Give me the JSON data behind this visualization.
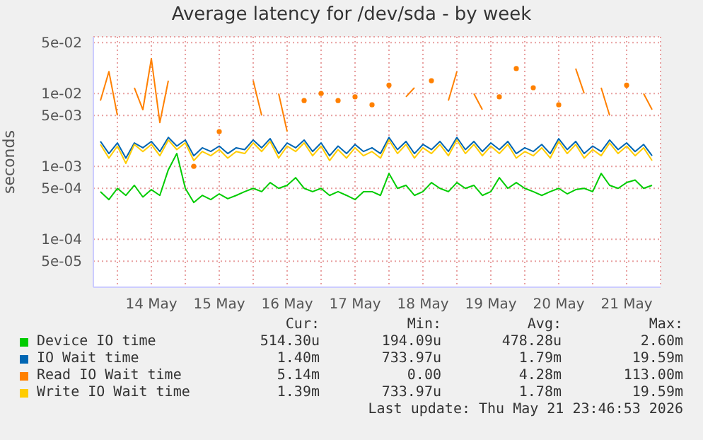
{
  "chart_data": {
    "type": "line",
    "title": "Average latency for /dev/sda - by week",
    "ylabel": "seconds",
    "log": "y",
    "grid": true,
    "legend": "bottom",
    "x": [
      "2026-05-13T18:00",
      "2026-05-13T21:00",
      "2026-05-14T00:00",
      "2026-05-14T03:00",
      "2026-05-14T06:00",
      "2026-05-14T09:00",
      "2026-05-14T12:00",
      "2026-05-14T15:00",
      "2026-05-14T18:00",
      "2026-05-14T21:00",
      "2026-05-15T00:00",
      "2026-05-15T03:00",
      "2026-05-15T06:00",
      "2026-05-15T09:00",
      "2026-05-15T12:00",
      "2026-05-15T15:00",
      "2026-05-15T18:00",
      "2026-05-15T21:00",
      "2026-05-16T00:00",
      "2026-05-16T03:00",
      "2026-05-16T06:00",
      "2026-05-16T09:00",
      "2026-05-16T12:00",
      "2026-05-16T15:00",
      "2026-05-16T18:00",
      "2026-05-16T21:00",
      "2026-05-17T00:00",
      "2026-05-17T03:00",
      "2026-05-17T06:00",
      "2026-05-17T09:00",
      "2026-05-17T12:00",
      "2026-05-17T15:00",
      "2026-05-17T18:00",
      "2026-05-17T21:00",
      "2026-05-18T00:00",
      "2026-05-18T03:00",
      "2026-05-18T06:00",
      "2026-05-18T09:00",
      "2026-05-18T12:00",
      "2026-05-18T15:00",
      "2026-05-18T18:00",
      "2026-05-18T21:00",
      "2026-05-19T00:00",
      "2026-05-19T03:00",
      "2026-05-19T06:00",
      "2026-05-19T09:00",
      "2026-05-19T12:00",
      "2026-05-19T15:00",
      "2026-05-19T18:00",
      "2026-05-19T21:00",
      "2026-05-20T00:00",
      "2026-05-20T03:00",
      "2026-05-20T06:00",
      "2026-05-20T09:00",
      "2026-05-20T12:00",
      "2026-05-20T15:00",
      "2026-05-20T18:00",
      "2026-05-20T21:00",
      "2026-05-21T00:00",
      "2026-05-21T03:00",
      "2026-05-21T06:00",
      "2026-05-21T09:00",
      "2026-05-21T12:00",
      "2026-05-21T15:00",
      "2026-05-21T18:00",
      "2026-05-21T21:00"
    ],
    "xlim": [
      "2026-05-13T15:30",
      "2026-05-22T00:00"
    ],
    "xticks": [
      {
        "value": "2026-05-14T00:00",
        "label": null
      },
      {
        "value": "2026-05-14T12:00",
        "label": "14 May"
      },
      {
        "value": "2026-05-15T00:00",
        "label": null
      },
      {
        "value": "2026-05-15T12:00",
        "label": "15 May"
      },
      {
        "value": "2026-05-16T00:00",
        "label": null
      },
      {
        "value": "2026-05-16T12:00",
        "label": "16 May"
      },
      {
        "value": "2026-05-17T00:00",
        "label": null
      },
      {
        "value": "2026-05-17T12:00",
        "label": "17 May"
      },
      {
        "value": "2026-05-18T00:00",
        "label": null
      },
      {
        "value": "2026-05-18T12:00",
        "label": "18 May"
      },
      {
        "value": "2026-05-19T00:00",
        "label": null
      },
      {
        "value": "2026-05-19T12:00",
        "label": "19 May"
      },
      {
        "value": "2026-05-20T00:00",
        "label": null
      },
      {
        "value": "2026-05-20T12:00",
        "label": "20 May"
      },
      {
        "value": "2026-05-21T00:00",
        "label": null
      },
      {
        "value": "2026-05-21T12:00",
        "label": "21 May"
      }
    ],
    "ylim": [
      2.2e-05,
      0.06
    ],
    "yticks": [
      {
        "value": 5e-05,
        "label": "5e-05"
      },
      {
        "value": 0.0001,
        "label": "1e-04"
      },
      {
        "value": 0.0005,
        "label": "5e-04"
      },
      {
        "value": 0.001,
        "label": "1e-03"
      },
      {
        "value": 0.005,
        "label": "5e-03"
      },
      {
        "value": 0.01,
        "label": "1e-02"
      },
      {
        "value": 0.05,
        "label": "5e-02"
      }
    ],
    "series": [
      {
        "name": "Device IO time",
        "color": "#00cc00",
        "values": [
          0.00045,
          0.00035,
          0.0005,
          0.0004,
          0.00055,
          0.00038,
          0.00048,
          0.0004,
          0.0009,
          0.0015,
          0.0005,
          0.00032,
          0.0004,
          0.00035,
          0.00042,
          0.00036,
          0.0004,
          0.00045,
          0.0005,
          0.00045,
          0.0006,
          0.0005,
          0.00055,
          0.0007,
          0.0005,
          0.00045,
          0.0005,
          0.0004,
          0.00045,
          0.0004,
          0.00035,
          0.00045,
          0.00045,
          0.0004,
          0.0008,
          0.0005,
          0.00055,
          0.0004,
          0.00045,
          0.0006,
          0.0005,
          0.00045,
          0.0006,
          0.0005,
          0.00055,
          0.0004,
          0.00045,
          0.0007,
          0.0005,
          0.0006,
          0.0005,
          0.00045,
          0.0004,
          0.00045,
          0.0005,
          0.00042,
          0.00048,
          0.0005,
          0.00045,
          0.0008,
          0.00055,
          0.0005,
          0.0006,
          0.00065,
          0.0005,
          0.00055
        ]
      },
      {
        "name": "IO Wait time",
        "color": "#0066b3",
        "values": [
          0.0022,
          0.0015,
          0.0021,
          0.0013,
          0.0021,
          0.0018,
          0.0022,
          0.0016,
          0.0025,
          0.0019,
          0.0023,
          0.0014,
          0.0018,
          0.0016,
          0.0019,
          0.0015,
          0.0018,
          0.0017,
          0.0023,
          0.0018,
          0.0024,
          0.0015,
          0.0021,
          0.0018,
          0.0023,
          0.0016,
          0.0021,
          0.0014,
          0.0019,
          0.0015,
          0.002,
          0.0016,
          0.0018,
          0.0015,
          0.0025,
          0.0017,
          0.0022,
          0.0015,
          0.002,
          0.0017,
          0.0022,
          0.0016,
          0.0025,
          0.0017,
          0.0022,
          0.0016,
          0.0021,
          0.0017,
          0.0022,
          0.0015,
          0.0018,
          0.0016,
          0.002,
          0.0015,
          0.0024,
          0.0017,
          0.0022,
          0.0015,
          0.0019,
          0.0016,
          0.0023,
          0.0017,
          0.0021,
          0.0016,
          0.002,
          0.0014
        ]
      },
      {
        "name": "Read IO Wait time",
        "color": "#ff8000",
        "values": [
          0.008,
          0.02,
          0.005,
          null,
          0.012,
          0.006,
          0.03,
          0.004,
          0.015,
          null,
          null,
          0.001,
          null,
          null,
          0.003,
          null,
          null,
          null,
          0.015,
          0.005,
          null,
          0.01,
          0.003,
          null,
          0.008,
          null,
          0.01,
          null,
          0.008,
          null,
          0.009,
          null,
          0.007,
          null,
          0.013,
          null,
          0.009,
          0.012,
          null,
          0.015,
          null,
          0.008,
          0.02,
          null,
          0.01,
          0.006,
          null,
          0.009,
          null,
          0.022,
          null,
          0.012,
          null,
          null,
          0.007,
          null,
          0.022,
          0.01,
          null,
          0.012,
          0.005,
          null,
          0.013,
          null,
          0.01,
          0.006
        ]
      },
      {
        "name": "Write IO Wait time",
        "color": "#ffcc00",
        "values": [
          0.002,
          0.0013,
          0.0019,
          0.0011,
          0.002,
          0.0016,
          0.002,
          0.0014,
          0.0023,
          0.0017,
          0.0021,
          0.0012,
          0.0016,
          0.0014,
          0.0017,
          0.0013,
          0.0016,
          0.0015,
          0.0021,
          0.0016,
          0.0022,
          0.0013,
          0.0019,
          0.0016,
          0.0021,
          0.0014,
          0.0019,
          0.0012,
          0.0017,
          0.0013,
          0.0018,
          0.0014,
          0.0016,
          0.0013,
          0.0023,
          0.0015,
          0.002,
          0.0013,
          0.0018,
          0.0015,
          0.002,
          0.0014,
          0.0023,
          0.0015,
          0.002,
          0.0014,
          0.0019,
          0.0015,
          0.002,
          0.0013,
          0.0016,
          0.0014,
          0.0018,
          0.0013,
          0.0022,
          0.0015,
          0.002,
          0.0013,
          0.0017,
          0.0014,
          0.0021,
          0.0015,
          0.0019,
          0.0014,
          0.0018,
          0.0012
        ]
      }
    ],
    "annotations": [
      "Cur:",
      "Min:",
      "Avg:",
      "Max:",
      "514.30u",
      "194.09u",
      "478.28u",
      "2.60m",
      "1.40m",
      "733.97u",
      "1.79m",
      "19.59m",
      "5.14m",
      "0.00",
      "4.28m",
      "113.00m",
      "1.39m",
      "733.97u",
      "1.78m",
      "19.59m",
      "Last update: Thu May 21 23:46:53 2026"
    ]
  }
}
